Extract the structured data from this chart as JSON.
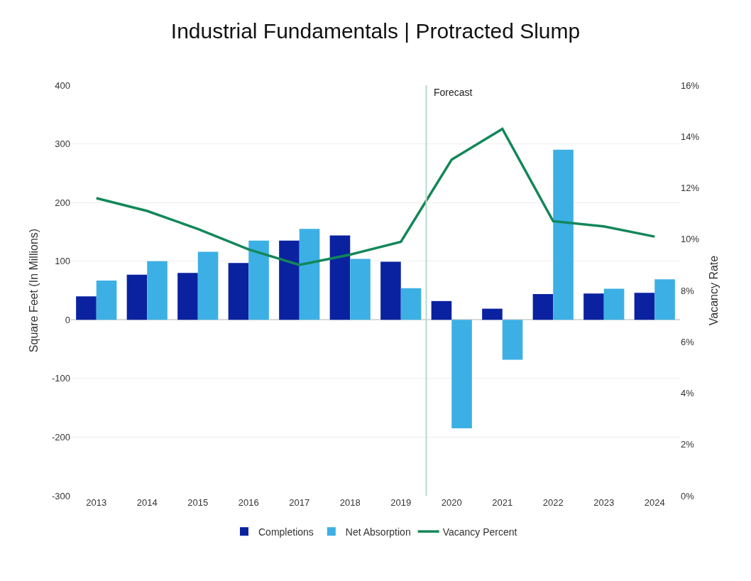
{
  "chart_data": {
    "type": "bar",
    "title": "Industrial Fundamentals | Protracted Slump",
    "ylabel": "Square Feet (In Millions)",
    "y2label": "Vacancy Rate",
    "x": [
      2013,
      2014,
      2015,
      2016,
      2017,
      2018,
      2019,
      2020,
      2021,
      2022,
      2023,
      2024
    ],
    "xlim": [
      2012.5,
      2024.5
    ],
    "xticks": [
      2013,
      2014,
      2015,
      2016,
      2017,
      2018,
      2019,
      2020,
      2021,
      2022,
      2023,
      2024
    ],
    "ylim": [
      -300,
      400
    ],
    "yticks": [
      -300,
      -200,
      -100,
      0,
      100,
      200,
      300,
      400
    ],
    "y2lim": [
      0,
      16
    ],
    "y2ticks": [
      {
        "value": 0,
        "label": "0%"
      },
      {
        "value": 2,
        "label": "2%"
      },
      {
        "value": 4,
        "label": "4%"
      },
      {
        "value": 6,
        "label": "6%"
      },
      {
        "value": 8,
        "label": "8%"
      },
      {
        "value": 10,
        "label": "10%"
      },
      {
        "value": 12,
        "label": "12%"
      },
      {
        "value": 14,
        "label": "14%"
      },
      {
        "value": 16,
        "label": "16%"
      }
    ],
    "series": [
      {
        "name": "Completions",
        "color": "#0a22a0",
        "values": [
          40,
          77,
          80,
          97,
          135,
          144,
          99,
          32,
          19,
          44,
          45,
          46
        ]
      },
      {
        "name": "Net Absorption",
        "color": "#3cb0e4",
        "values": [
          67,
          100,
          116,
          135,
          155,
          104,
          54,
          -185,
          -68,
          290,
          53,
          69
        ]
      },
      {
        "name": "Vacancy Percent",
        "type": "line",
        "axis": "y2",
        "color": "#13875a",
        "values": [
          11.6,
          11.1,
          10.4,
          9.6,
          9.0,
          9.4,
          9.9,
          13.1,
          14.3,
          10.7,
          10.5,
          10.1
        ]
      }
    ],
    "ref_lines": [
      {
        "axis": "x",
        "value": 2019.5,
        "label": "Forecast",
        "color": "#b8d8cc"
      }
    ],
    "grid": "y",
    "legend": "bottom",
    "marker": "none"
  }
}
